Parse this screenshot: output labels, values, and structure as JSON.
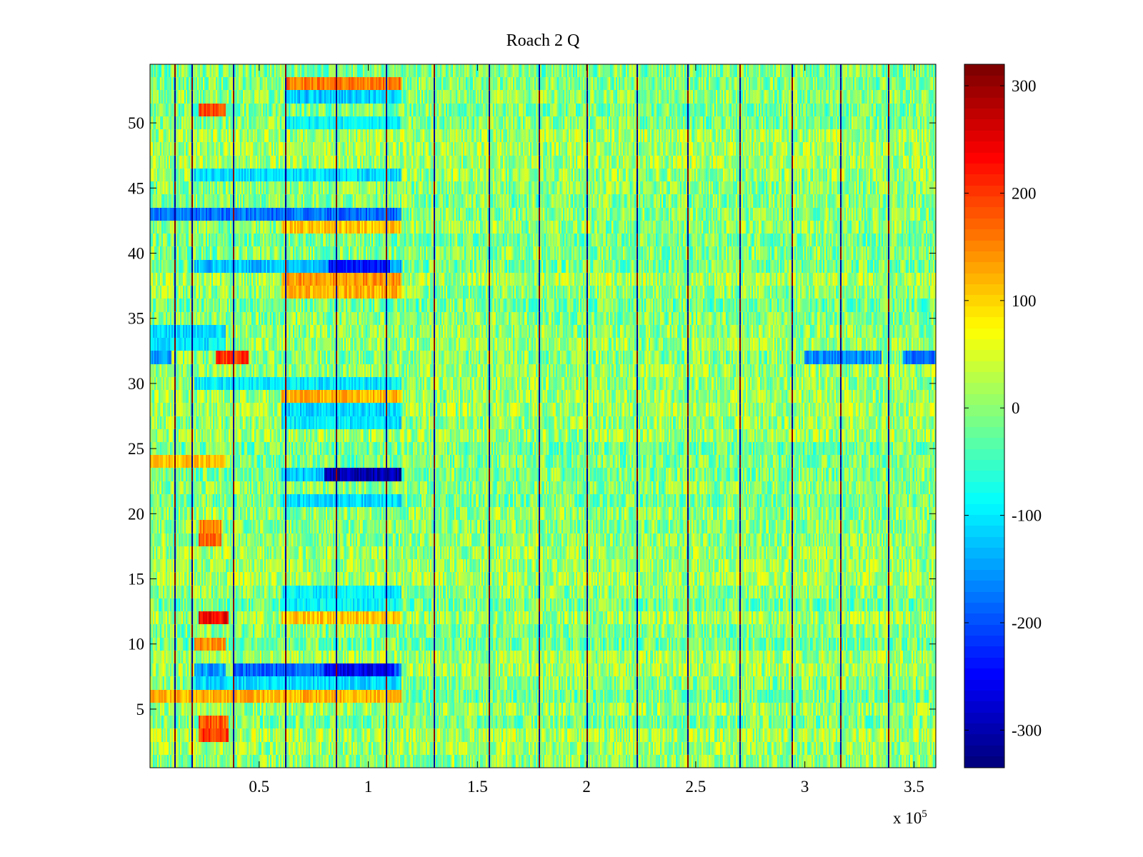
{
  "chart_data": {
    "type": "heatmap",
    "title": "Roach 2 Q",
    "xlabel": "",
    "ylabel": "",
    "x_exponent_base": "x 10",
    "x_exponent_power": "5",
    "xlim": [
      0,
      3.6
    ],
    "ylim": [
      0.5,
      54.5
    ],
    "x_ticks": [
      0.5,
      1,
      1.5,
      2,
      2.5,
      3,
      3.5
    ],
    "x_tick_labels": [
      "0.5",
      "1",
      "1.5",
      "2",
      "2.5",
      "3",
      "3.5"
    ],
    "y_ticks": [
      5,
      10,
      15,
      20,
      25,
      30,
      35,
      40,
      45,
      50
    ],
    "y_tick_labels": [
      "5",
      "10",
      "15",
      "20",
      "25",
      "30",
      "35",
      "40",
      "45",
      "50"
    ],
    "rows": 54,
    "colormap": "jet",
    "clim": [
      -335,
      320
    ],
    "colorbar": {
      "ticks": [
        300,
        200,
        100,
        0,
        -100,
        -200,
        -300
      ],
      "tick_labels": [
        "300",
        "200",
        "100",
        "0",
        "-100",
        "-200",
        "-300"
      ]
    },
    "background_mean": 0,
    "spike_columns": [
      0.11,
      0.19,
      0.38,
      0.62,
      0.85,
      1.08,
      1.3,
      1.55,
      1.78,
      2.0,
      2.23,
      2.46,
      2.7,
      2.94,
      3.16,
      3.38
    ],
    "block_regions": [
      {
        "x_range": [
          0.62,
          1.15
        ],
        "row": 53,
        "value": 160
      },
      {
        "x_range": [
          0.62,
          1.15
        ],
        "row": 52,
        "value": -120
      },
      {
        "x_range": [
          0.62,
          1.15
        ],
        "row": 50,
        "value": -90
      },
      {
        "x_range": [
          0.22,
          0.35
        ],
        "row": 51,
        "value": 190
      },
      {
        "x_range": [
          0.2,
          1.15
        ],
        "row": 46,
        "value": -110
      },
      {
        "x_range": [
          0.0,
          1.15
        ],
        "row": 43,
        "value": -180
      },
      {
        "x_range": [
          0.6,
          1.15
        ],
        "row": 42,
        "value": 110
      },
      {
        "x_range": [
          0.2,
          1.15
        ],
        "row": 39,
        "value": -130
      },
      {
        "x_range": [
          0.82,
          1.1
        ],
        "row": 39,
        "value": -240
      },
      {
        "x_range": [
          0.6,
          1.15
        ],
        "row": 38,
        "value": 140
      },
      {
        "x_range": [
          0.6,
          1.15
        ],
        "row": 37,
        "value": 120
      },
      {
        "x_range": [
          0.0,
          0.35
        ],
        "row": 34,
        "value": -110
      },
      {
        "x_range": [
          0.0,
          0.35
        ],
        "row": 33,
        "value": -100
      },
      {
        "x_range": [
          0.2,
          1.15
        ],
        "row": 30,
        "value": -100
      },
      {
        "x_range": [
          0.6,
          1.15
        ],
        "row": 29,
        "value": 120
      },
      {
        "x_range": [
          0.6,
          1.15
        ],
        "row": 28,
        "value": -110
      },
      {
        "x_range": [
          0.6,
          1.15
        ],
        "row": 27,
        "value": -100
      },
      {
        "x_range": [
          0.0,
          0.35
        ],
        "row": 24,
        "value": 110
      },
      {
        "x_range": [
          0.6,
          1.15
        ],
        "row": 23,
        "value": -120
      },
      {
        "x_range": [
          0.8,
          1.15
        ],
        "row": 23,
        "value": -300
      },
      {
        "x_range": [
          0.6,
          1.15
        ],
        "row": 21,
        "value": -110
      },
      {
        "x_range": [
          0.22,
          0.33
        ],
        "row": 19,
        "value": 150
      },
      {
        "x_range": [
          0.22,
          0.33
        ],
        "row": 18,
        "value": 170
      },
      {
        "x_range": [
          0.6,
          1.15
        ],
        "row": 14,
        "value": -100
      },
      {
        "x_range": [
          0.6,
          1.15
        ],
        "row": 13,
        "value": -90
      },
      {
        "x_range": [
          0.22,
          0.36
        ],
        "row": 12,
        "value": 240
      },
      {
        "x_range": [
          0.6,
          1.15
        ],
        "row": 12,
        "value": 110
      },
      {
        "x_range": [
          0.2,
          0.35
        ],
        "row": 10,
        "value": 140
      },
      {
        "x_range": [
          0.2,
          0.35
        ],
        "row": 8,
        "value": -150
      },
      {
        "x_range": [
          0.38,
          1.15
        ],
        "row": 8,
        "value": -190
      },
      {
        "x_range": [
          0.8,
          1.12
        ],
        "row": 8,
        "value": -260
      },
      {
        "x_range": [
          0.2,
          1.15
        ],
        "row": 7,
        "value": -110
      },
      {
        "x_range": [
          0.0,
          1.15
        ],
        "row": 6,
        "value": 120
      },
      {
        "x_range": [
          0.22,
          0.36
        ],
        "row": 4,
        "value": 180
      },
      {
        "x_range": [
          0.22,
          0.36
        ],
        "row": 3,
        "value": 200
      },
      {
        "x_range": [
          0.0,
          0.1
        ],
        "row": 32,
        "value": -150
      },
      {
        "x_range": [
          0.3,
          0.45
        ],
        "row": 32,
        "value": 200
      },
      {
        "x_range": [
          3.0,
          3.35
        ],
        "row": 32,
        "value": -160
      },
      {
        "x_range": [
          3.45,
          3.6
        ],
        "row": 32,
        "value": -180
      }
    ]
  }
}
